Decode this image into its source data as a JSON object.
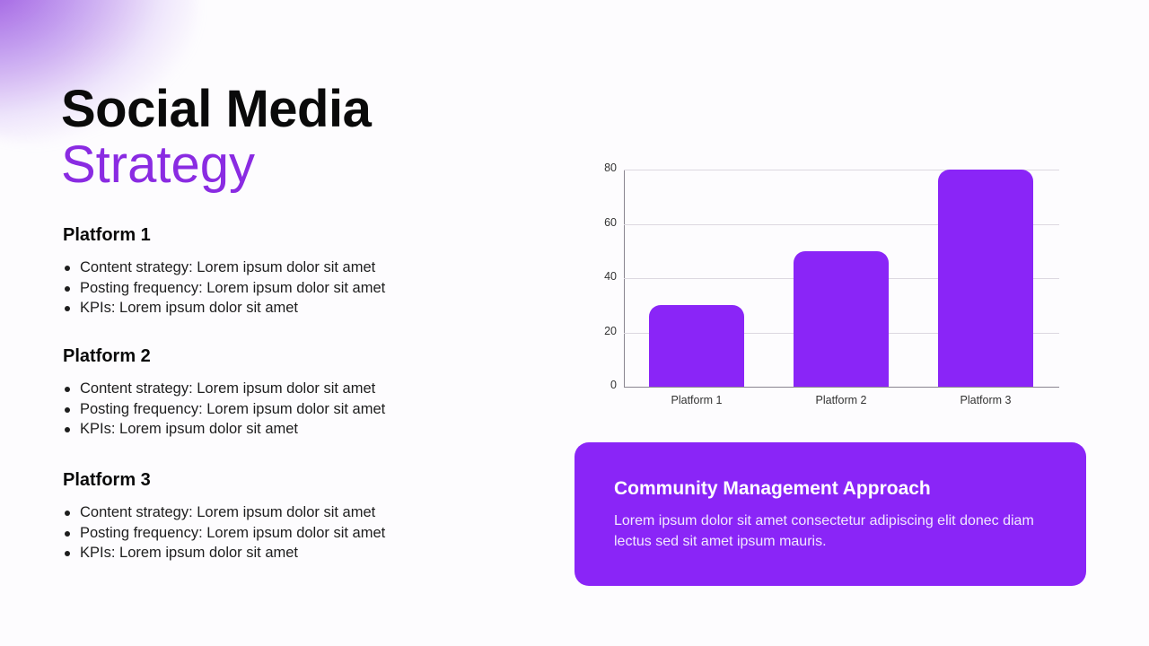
{
  "title": {
    "line1": "Social Media",
    "line2": "Strategy"
  },
  "accent_color": "#8a25f7",
  "platforms": [
    {
      "heading": "Platform 1",
      "bullets": [
        "Content strategy: Lorem ipsum dolor sit amet",
        "Posting frequency: Lorem ipsum dolor sit amet",
        "KPIs: Lorem ipsum dolor sit amet"
      ]
    },
    {
      "heading": "Platform 2",
      "bullets": [
        "Content strategy: Lorem ipsum dolor sit amet",
        "Posting frequency: Lorem ipsum dolor sit amet",
        "KPIs: Lorem ipsum dolor sit amet"
      ]
    },
    {
      "heading": "Platform 3",
      "bullets": [
        "Content strategy: Lorem ipsum dolor sit amet",
        "Posting frequency: Lorem ipsum dolor sit amet",
        "KPIs: Lorem ipsum dolor sit amet"
      ]
    }
  ],
  "chart_data": {
    "type": "bar",
    "title": "",
    "xlabel": "",
    "ylabel": "",
    "categories": [
      "Platform 1",
      "Platform 2",
      "Platform 3"
    ],
    "values": [
      30,
      50,
      80
    ],
    "ylim": [
      0,
      80
    ],
    "yticks": [
      "0",
      "20",
      "40",
      "60",
      "80"
    ],
    "grid": true,
    "legend": "none",
    "bar_color": "#8a25f7"
  },
  "card": {
    "title": "Community Management Approach",
    "body": "Lorem ipsum dolor sit amet consectetur adipiscing elit donec diam lectus sed sit amet ipsum mauris."
  }
}
